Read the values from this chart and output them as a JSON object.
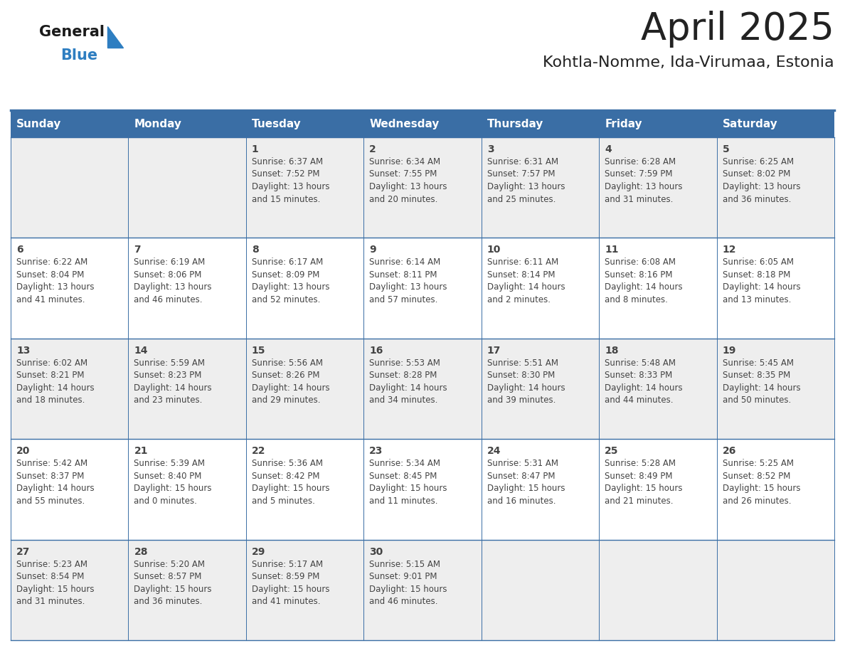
{
  "title": "April 2025",
  "subtitle": "Kohtla-Nomme, Ida-Virumaa, Estonia",
  "header_bg_color": "#3a6ea5",
  "header_text_color": "#ffffff",
  "weekdays": [
    "Sunday",
    "Monday",
    "Tuesday",
    "Wednesday",
    "Thursday",
    "Friday",
    "Saturday"
  ],
  "row_colors": [
    "#eeeeee",
    "#ffffff"
  ],
  "border_color": "#3a6ea5",
  "text_color": "#444444",
  "day_number_color": "#222222",
  "title_fontsize": 38,
  "subtitle_fontsize": 16,
  "header_fontsize": 11,
  "day_num_fontsize": 10,
  "info_fontsize": 8.5,
  "logo_color_general": "#1a1a1a",
  "logo_color_blue": "#2e7ec1",
  "logo_triangle_color": "#2e7ec1",
  "calendar": [
    [
      {
        "day": "",
        "info": ""
      },
      {
        "day": "",
        "info": ""
      },
      {
        "day": "1",
        "info": "Sunrise: 6:37 AM\nSunset: 7:52 PM\nDaylight: 13 hours\nand 15 minutes."
      },
      {
        "day": "2",
        "info": "Sunrise: 6:34 AM\nSunset: 7:55 PM\nDaylight: 13 hours\nand 20 minutes."
      },
      {
        "day": "3",
        "info": "Sunrise: 6:31 AM\nSunset: 7:57 PM\nDaylight: 13 hours\nand 25 minutes."
      },
      {
        "day": "4",
        "info": "Sunrise: 6:28 AM\nSunset: 7:59 PM\nDaylight: 13 hours\nand 31 minutes."
      },
      {
        "day": "5",
        "info": "Sunrise: 6:25 AM\nSunset: 8:02 PM\nDaylight: 13 hours\nand 36 minutes."
      }
    ],
    [
      {
        "day": "6",
        "info": "Sunrise: 6:22 AM\nSunset: 8:04 PM\nDaylight: 13 hours\nand 41 minutes."
      },
      {
        "day": "7",
        "info": "Sunrise: 6:19 AM\nSunset: 8:06 PM\nDaylight: 13 hours\nand 46 minutes."
      },
      {
        "day": "8",
        "info": "Sunrise: 6:17 AM\nSunset: 8:09 PM\nDaylight: 13 hours\nand 52 minutes."
      },
      {
        "day": "9",
        "info": "Sunrise: 6:14 AM\nSunset: 8:11 PM\nDaylight: 13 hours\nand 57 minutes."
      },
      {
        "day": "10",
        "info": "Sunrise: 6:11 AM\nSunset: 8:14 PM\nDaylight: 14 hours\nand 2 minutes."
      },
      {
        "day": "11",
        "info": "Sunrise: 6:08 AM\nSunset: 8:16 PM\nDaylight: 14 hours\nand 8 minutes."
      },
      {
        "day": "12",
        "info": "Sunrise: 6:05 AM\nSunset: 8:18 PM\nDaylight: 14 hours\nand 13 minutes."
      }
    ],
    [
      {
        "day": "13",
        "info": "Sunrise: 6:02 AM\nSunset: 8:21 PM\nDaylight: 14 hours\nand 18 minutes."
      },
      {
        "day": "14",
        "info": "Sunrise: 5:59 AM\nSunset: 8:23 PM\nDaylight: 14 hours\nand 23 minutes."
      },
      {
        "day": "15",
        "info": "Sunrise: 5:56 AM\nSunset: 8:26 PM\nDaylight: 14 hours\nand 29 minutes."
      },
      {
        "day": "16",
        "info": "Sunrise: 5:53 AM\nSunset: 8:28 PM\nDaylight: 14 hours\nand 34 minutes."
      },
      {
        "day": "17",
        "info": "Sunrise: 5:51 AM\nSunset: 8:30 PM\nDaylight: 14 hours\nand 39 minutes."
      },
      {
        "day": "18",
        "info": "Sunrise: 5:48 AM\nSunset: 8:33 PM\nDaylight: 14 hours\nand 44 minutes."
      },
      {
        "day": "19",
        "info": "Sunrise: 5:45 AM\nSunset: 8:35 PM\nDaylight: 14 hours\nand 50 minutes."
      }
    ],
    [
      {
        "day": "20",
        "info": "Sunrise: 5:42 AM\nSunset: 8:37 PM\nDaylight: 14 hours\nand 55 minutes."
      },
      {
        "day": "21",
        "info": "Sunrise: 5:39 AM\nSunset: 8:40 PM\nDaylight: 15 hours\nand 0 minutes."
      },
      {
        "day": "22",
        "info": "Sunrise: 5:36 AM\nSunset: 8:42 PM\nDaylight: 15 hours\nand 5 minutes."
      },
      {
        "day": "23",
        "info": "Sunrise: 5:34 AM\nSunset: 8:45 PM\nDaylight: 15 hours\nand 11 minutes."
      },
      {
        "day": "24",
        "info": "Sunrise: 5:31 AM\nSunset: 8:47 PM\nDaylight: 15 hours\nand 16 minutes."
      },
      {
        "day": "25",
        "info": "Sunrise: 5:28 AM\nSunset: 8:49 PM\nDaylight: 15 hours\nand 21 minutes."
      },
      {
        "day": "26",
        "info": "Sunrise: 5:25 AM\nSunset: 8:52 PM\nDaylight: 15 hours\nand 26 minutes."
      }
    ],
    [
      {
        "day": "27",
        "info": "Sunrise: 5:23 AM\nSunset: 8:54 PM\nDaylight: 15 hours\nand 31 minutes."
      },
      {
        "day": "28",
        "info": "Sunrise: 5:20 AM\nSunset: 8:57 PM\nDaylight: 15 hours\nand 36 minutes."
      },
      {
        "day": "29",
        "info": "Sunrise: 5:17 AM\nSunset: 8:59 PM\nDaylight: 15 hours\nand 41 minutes."
      },
      {
        "day": "30",
        "info": "Sunrise: 5:15 AM\nSunset: 9:01 PM\nDaylight: 15 hours\nand 46 minutes."
      },
      {
        "day": "",
        "info": ""
      },
      {
        "day": "",
        "info": ""
      },
      {
        "day": "",
        "info": ""
      }
    ]
  ]
}
